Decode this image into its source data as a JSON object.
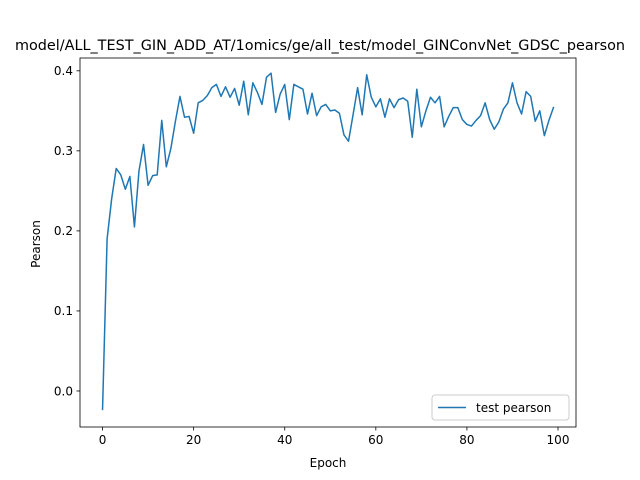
{
  "chart_data": {
    "type": "line",
    "title": "model/ALL_TEST_GIN_ADD_AT/1omics/ge/all_test/model_GINConvNet_GDSC_pearson",
    "xlabel": "Epoch",
    "ylabel": "Pearson",
    "xlim": [
      -4.95,
      103.95
    ],
    "ylim": [
      -0.045,
      0.416
    ],
    "xticks": [
      0,
      20,
      40,
      60,
      80,
      100
    ],
    "yticks": [
      0.0,
      0.1,
      0.2,
      0.3,
      0.4
    ],
    "xtick_labels": [
      "0",
      "20",
      "40",
      "60",
      "80",
      "100"
    ],
    "ytick_labels": [
      "0.0",
      "0.1",
      "0.2",
      "0.3",
      "0.4"
    ],
    "grid": false,
    "legend_position": "lower right",
    "series": [
      {
        "name": "test pearson",
        "color": "#1f77b4",
        "x": [
          0,
          1,
          2,
          3,
          4,
          5,
          6,
          7,
          8,
          9,
          10,
          11,
          12,
          13,
          14,
          15,
          16,
          17,
          18,
          19,
          20,
          21,
          22,
          23,
          24,
          25,
          26,
          27,
          28,
          29,
          30,
          31,
          32,
          33,
          34,
          35,
          36,
          37,
          38,
          39,
          40,
          41,
          42,
          43,
          44,
          45,
          46,
          47,
          48,
          49,
          50,
          51,
          52,
          53,
          54,
          55,
          56,
          57,
          58,
          59,
          60,
          61,
          62,
          63,
          64,
          65,
          66,
          67,
          68,
          69,
          70,
          71,
          72,
          73,
          74,
          75,
          76,
          77,
          78,
          79,
          80,
          81,
          82,
          83,
          84,
          85,
          86,
          87,
          88,
          89,
          90,
          91,
          92,
          93,
          94,
          95,
          96,
          97,
          98,
          99
        ],
        "values": [
          -0.023,
          0.19,
          0.24,
          0.278,
          0.27,
          0.252,
          0.268,
          0.205,
          0.275,
          0.308,
          0.257,
          0.269,
          0.27,
          0.338,
          0.28,
          0.303,
          0.337,
          0.368,
          0.342,
          0.343,
          0.322,
          0.36,
          0.363,
          0.369,
          0.379,
          0.383,
          0.368,
          0.38,
          0.367,
          0.378,
          0.357,
          0.387,
          0.345,
          0.385,
          0.373,
          0.358,
          0.392,
          0.397,
          0.348,
          0.371,
          0.383,
          0.339,
          0.383,
          0.38,
          0.377,
          0.346,
          0.372,
          0.344,
          0.355,
          0.358,
          0.35,
          0.351,
          0.347,
          0.32,
          0.312,
          0.345,
          0.379,
          0.345,
          0.395,
          0.367,
          0.355,
          0.365,
          0.342,
          0.365,
          0.354,
          0.364,
          0.366,
          0.362,
          0.317,
          0.377,
          0.33,
          0.35,
          0.367,
          0.36,
          0.368,
          0.33,
          0.343,
          0.354,
          0.354,
          0.339,
          0.333,
          0.331,
          0.338,
          0.344,
          0.36,
          0.339,
          0.327,
          0.336,
          0.352,
          0.36,
          0.385,
          0.36,
          0.346,
          0.374,
          0.368,
          0.337,
          0.35,
          0.319,
          0.338,
          0.354
        ]
      }
    ]
  }
}
